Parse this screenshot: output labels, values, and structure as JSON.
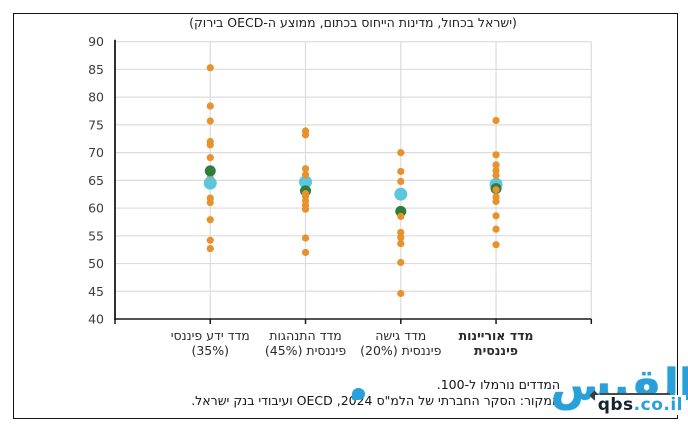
{
  "figure": {
    "footnotes": {
      "line1": "המדדים נורמלו ל-100.",
      "line2": "המקור: הסקר החברתי של הלמ\"ס 2024, OECD ועיבודי בנק ישראל."
    }
  },
  "watermark": {
    "arabic_logo": "القبس",
    "site_name": "qbs",
    "site_suffix": ".co.il"
  },
  "chart_data": {
    "type": "scatter",
    "title": "(ישראל בכחול, מדינות הייחוס בכתום, ממוצע ה-OECD בירוק)",
    "ylim": [
      40,
      90
    ],
    "ytick_step": 5,
    "grid": true,
    "categories": [
      {
        "id": "knowledge",
        "label_lines": [
          "מדד ידע פיננסי",
          "(35%)"
        ],
        "bold": false
      },
      {
        "id": "behavior",
        "label_lines": [
          "מדד התנהגות",
          "פיננסית (45%)"
        ],
        "bold": false
      },
      {
        "id": "attitude",
        "label_lines": [
          "מדד גישה",
          "פיננסית (20%)"
        ],
        "bold": false
      },
      {
        "id": "literacy",
        "label_lines": [
          "מדד אוריינות",
          "פיננסית"
        ],
        "bold": true
      }
    ],
    "series": [
      {
        "name": "ישראל",
        "key": "israel",
        "color": "#5BC6DC",
        "marker_radius": 6.5,
        "values": [
          64.5,
          64.7,
          62.5,
          64.3
        ]
      },
      {
        "name": "ממוצע ה-OECD",
        "key": "oecd",
        "color": "#2E7D3A",
        "marker_radius": 5.5,
        "values": [
          66.7,
          63.1,
          59.4,
          63.5
        ]
      },
      {
        "name": "מדינות הייחוס",
        "key": "reference",
        "color": "#E8912D",
        "marker_radius": 3.6,
        "values": [
          [
            85.3,
            78.4,
            75.7,
            72.0,
            71.4,
            69.1,
            65.5,
            61.8,
            61.0,
            57.9,
            54.2,
            52.7
          ],
          [
            73.9,
            73.2,
            67.1,
            66.0,
            62.6,
            62.1,
            61.3,
            60.5,
            59.8,
            54.6,
            52.0
          ],
          [
            70.0,
            66.6,
            64.8,
            58.5,
            55.6,
            54.7,
            53.6,
            50.2,
            44.6
          ],
          [
            75.8,
            69.6,
            67.8,
            66.8,
            65.9,
            63.3,
            62.0,
            61.2,
            58.6,
            56.2,
            53.4
          ]
        ]
      }
    ],
    "draw_order": [
      [
        "reference",
        "oecd",
        "israel"
      ],
      [
        "israel",
        "oecd",
        "reference"
      ],
      [
        "israel",
        "oecd",
        "reference"
      ],
      [
        "israel",
        "oecd",
        "reference"
      ]
    ]
  }
}
